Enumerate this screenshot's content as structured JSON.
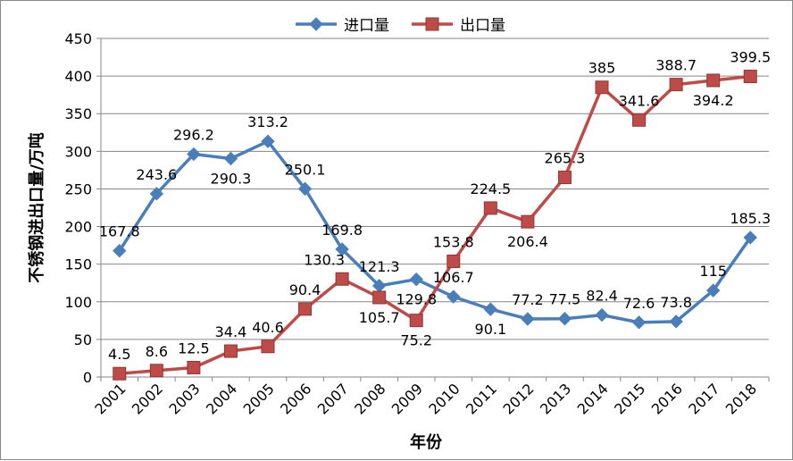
{
  "chart_data": {
    "type": "line",
    "title": "",
    "xlabel": "年份",
    "ylabel": "不锈钢进出口量/万吨",
    "categories": [
      "2001",
      "2002",
      "2003",
      "2004",
      "2005",
      "2006",
      "2007",
      "2008",
      "2009",
      "2010",
      "2011",
      "2012",
      "2013",
      "2014",
      "2015",
      "2016",
      "2017",
      "2018"
    ],
    "ylim": [
      0,
      450
    ],
    "yticks": [
      0,
      50,
      100,
      150,
      200,
      250,
      300,
      350,
      400,
      450
    ],
    "grid": true,
    "legend": "top",
    "series": [
      {
        "name": "进口量",
        "color": "#4A7EBB",
        "marker": "diamond",
        "values": [
          167.8,
          243.6,
          296.2,
          290.3,
          313.2,
          250.1,
          169.8,
          121.3,
          129.8,
          106.7,
          90.1,
          77.2,
          77.5,
          82.4,
          72.6,
          73.8,
          115,
          185.3
        ]
      },
      {
        "name": "出口量",
        "color": "#BE4B48",
        "marker": "square",
        "values": [
          4.5,
          8.6,
          12.5,
          34.4,
          40.6,
          90.4,
          130.3,
          105.7,
          75.2,
          153.8,
          224.5,
          206.4,
          265.3,
          385,
          341.6,
          388.7,
          394.2,
          399.5
        ]
      }
    ]
  }
}
